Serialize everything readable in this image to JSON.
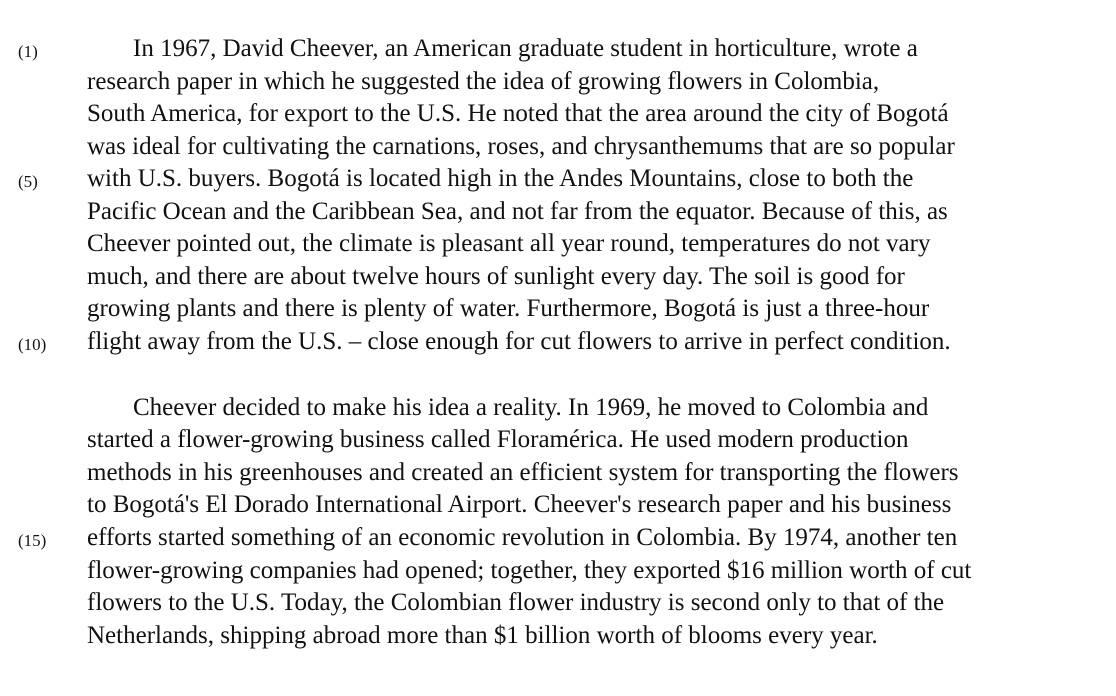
{
  "passage": {
    "paragraphs": [
      {
        "lines": [
          {
            "num": "(1)",
            "text": "In 1967, David Cheever, an American graduate student in horticulture, wrote a"
          },
          {
            "num": "",
            "text": "research paper in which he suggested the idea of growing flowers in Colombia,"
          },
          {
            "num": "",
            "text": "South America, for export to the U.S.  He noted that the area around the city of Bogotá"
          },
          {
            "num": "",
            "text": "was ideal for cultivating the carnations, roses, and chrysanthemums that are so popular"
          },
          {
            "num": "(5)",
            "text": "with U.S. buyers.  Bogotá is located high in the Andes Mountains, close to both the"
          },
          {
            "num": "",
            "text": "Pacific Ocean and the Caribbean Sea, and not far from the equator.  Because of this, as"
          },
          {
            "num": "",
            "text": "Cheever pointed out, the climate is pleasant all year round, temperatures do not vary"
          },
          {
            "num": "",
            "text": "much, and there are about twelve hours of sunlight every day.  The soil is good for"
          },
          {
            "num": "",
            "text": "growing plants and there is plenty of water.  Furthermore, Bogotá is just a three-hour"
          },
          {
            "num": "(10)",
            "text": "flight away from the U.S. – close enough for cut flowers to arrive in perfect condition."
          }
        ]
      },
      {
        "lines": [
          {
            "num": "",
            "text": "Cheever decided to make his idea a reality.  In 1969, he moved to Colombia and"
          },
          {
            "num": "",
            "text": "started a flower-growing business called Floramérica.  He used modern production"
          },
          {
            "num": "",
            "text": "methods in his greenhouses and created an efficient system for transporting the flowers"
          },
          {
            "num": "",
            "text": "to Bogotá's El Dorado International Airport.  Cheever's research paper and his business"
          },
          {
            "num": "(15)",
            "text": "efforts started something of an economic revolution in Colombia.  By 1974, another ten"
          },
          {
            "num": "",
            "text": "flower-growing companies had opened; together, they exported $16 million worth of cut"
          },
          {
            "num": "",
            "text": "flowers to the U.S.  Today, the Colombian flower industry is second only to that of the"
          },
          {
            "num": "",
            "text": "Netherlands, shipping abroad more than $1 billion worth of blooms every year."
          }
        ]
      }
    ]
  }
}
